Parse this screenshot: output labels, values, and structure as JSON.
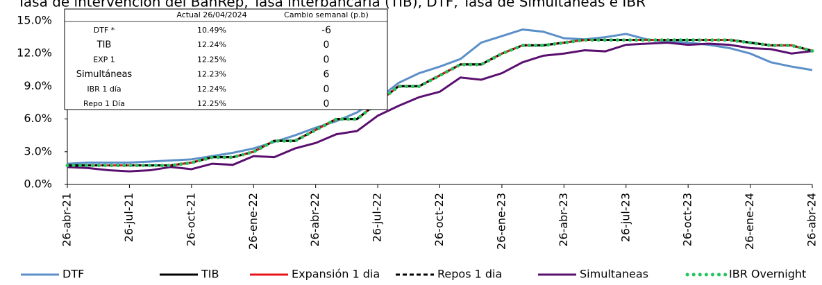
{
  "chart_data": {
    "type": "line",
    "title": "Tasa de intervención del BanRep, Tasa interbancaria (TIB), DTF, Tasa de Simultáneas e IBR",
    "categories": [
      "26-abr-21",
      null,
      null,
      "26-jul-21",
      null,
      null,
      "26-oct-21",
      null,
      null,
      "26-ene-22",
      null,
      null,
      "26-abr-22",
      null,
      null,
      "26-jul-22",
      null,
      null,
      "26-oct-22",
      null,
      null,
      "26-ene-23",
      null,
      null,
      "26-abr-23",
      null,
      null,
      "26-jul-23",
      null,
      null,
      "26-oct-23",
      null,
      null,
      "26-ene-24",
      null,
      null,
      "26-abr-24"
    ],
    "ylim": [
      0,
      15
    ],
    "yticks": [
      {
        "value": 0,
        "label": "0.0%"
      },
      {
        "value": 3,
        "label": "3.0%"
      },
      {
        "value": 6,
        "label": "6.0%"
      },
      {
        "value": 9,
        "label": "9.0%"
      },
      {
        "value": 12,
        "label": "12.0%"
      },
      {
        "value": 15,
        "label": "15.0%"
      }
    ],
    "legend": "bottom",
    "series": [
      {
        "name": "DTF",
        "color": "#5b8fc8",
        "dash": "solid",
        "values": [
          1.9,
          2.0,
          2.0,
          2.0,
          2.1,
          2.2,
          2.3,
          2.6,
          2.9,
          3.3,
          3.9,
          4.5,
          5.2,
          5.8,
          6.6,
          7.8,
          9.3,
          10.2,
          10.8,
          11.5,
          13.0,
          13.6,
          14.2,
          14.0,
          13.4,
          13.3,
          13.5,
          13.8,
          13.3,
          13.1,
          13.0,
          12.8,
          12.5,
          12.0,
          11.2,
          10.8,
          10.49
        ]
      },
      {
        "name": "TIB",
        "color": "#000000",
        "dash": "solid",
        "values": [
          1.75,
          1.75,
          1.75,
          1.75,
          1.75,
          1.75,
          2.0,
          2.5,
          2.5,
          3.0,
          4.0,
          4.0,
          5.0,
          6.0,
          6.0,
          7.5,
          9.0,
          9.0,
          10.0,
          11.0,
          11.0,
          12.0,
          12.75,
          12.75,
          13.0,
          13.25,
          13.25,
          13.25,
          13.25,
          13.25,
          13.25,
          13.25,
          13.25,
          13.0,
          12.75,
          12.75,
          12.24
        ]
      },
      {
        "name": "Expansión 1 dia",
        "color": "#e8141c",
        "dash": "solid",
        "values": [
          1.75,
          1.75,
          1.75,
          1.75,
          1.75,
          1.75,
          2.0,
          2.5,
          2.5,
          3.0,
          4.0,
          4.0,
          5.0,
          6.0,
          6.0,
          7.5,
          9.0,
          9.0,
          10.0,
          11.0,
          11.0,
          12.0,
          12.75,
          12.75,
          13.0,
          13.25,
          13.25,
          13.25,
          13.25,
          13.25,
          13.25,
          13.25,
          13.25,
          13.0,
          12.75,
          12.75,
          12.25
        ]
      },
      {
        "name": "Repos 1 dia",
        "color": "#000000",
        "dash": "dashed",
        "values": [
          1.75,
          1.75,
          1.75,
          1.75,
          1.75,
          1.75,
          2.0,
          2.5,
          2.5,
          3.0,
          4.0,
          4.0,
          5.0,
          6.0,
          6.0,
          7.5,
          9.0,
          9.0,
          10.0,
          11.0,
          11.0,
          12.0,
          12.75,
          12.75,
          13.0,
          13.25,
          13.25,
          13.25,
          13.25,
          13.25,
          13.25,
          13.25,
          13.25,
          13.0,
          12.75,
          12.75,
          12.25
        ]
      },
      {
        "name": "Simultaneas",
        "color": "#5a0f6e",
        "dash": "solid",
        "values": [
          1.6,
          1.5,
          1.3,
          1.2,
          1.3,
          1.6,
          1.4,
          1.9,
          1.8,
          2.6,
          2.5,
          3.3,
          3.8,
          4.6,
          4.9,
          6.3,
          7.2,
          8.0,
          8.5,
          9.8,
          9.6,
          10.2,
          11.2,
          11.8,
          12.0,
          12.3,
          12.2,
          12.8,
          12.9,
          13.0,
          12.8,
          12.9,
          12.8,
          12.5,
          12.4,
          12.0,
          12.23
        ]
      },
      {
        "name": "IBR Overnight",
        "color": "#22c55e",
        "dash": "dotted",
        "values": [
          1.74,
          1.74,
          1.74,
          1.74,
          1.74,
          1.74,
          1.99,
          2.49,
          2.49,
          2.99,
          3.99,
          3.99,
          4.99,
          5.99,
          5.99,
          7.49,
          8.99,
          8.99,
          9.99,
          10.99,
          10.99,
          11.99,
          12.74,
          12.74,
          12.99,
          13.24,
          13.24,
          13.24,
          13.24,
          13.24,
          13.24,
          13.24,
          13.24,
          12.99,
          12.74,
          12.74,
          12.24
        ]
      }
    ],
    "table": {
      "columns": [
        "Actual 26/04/2024",
        "Cambio semanal (p.b)"
      ],
      "rows": [
        [
          "DTF *",
          "10.49%",
          "-6"
        ],
        [
          "TIB",
          "12.24%",
          "0"
        ],
        [
          "EXP 1",
          "12.25%",
          "0"
        ],
        [
          "Simultáneas",
          "12.23%",
          "6"
        ],
        [
          "IBR 1 día",
          "12.24%",
          "0"
        ],
        [
          "Repo 1 Día",
          "12.25%",
          "0"
        ]
      ]
    }
  }
}
